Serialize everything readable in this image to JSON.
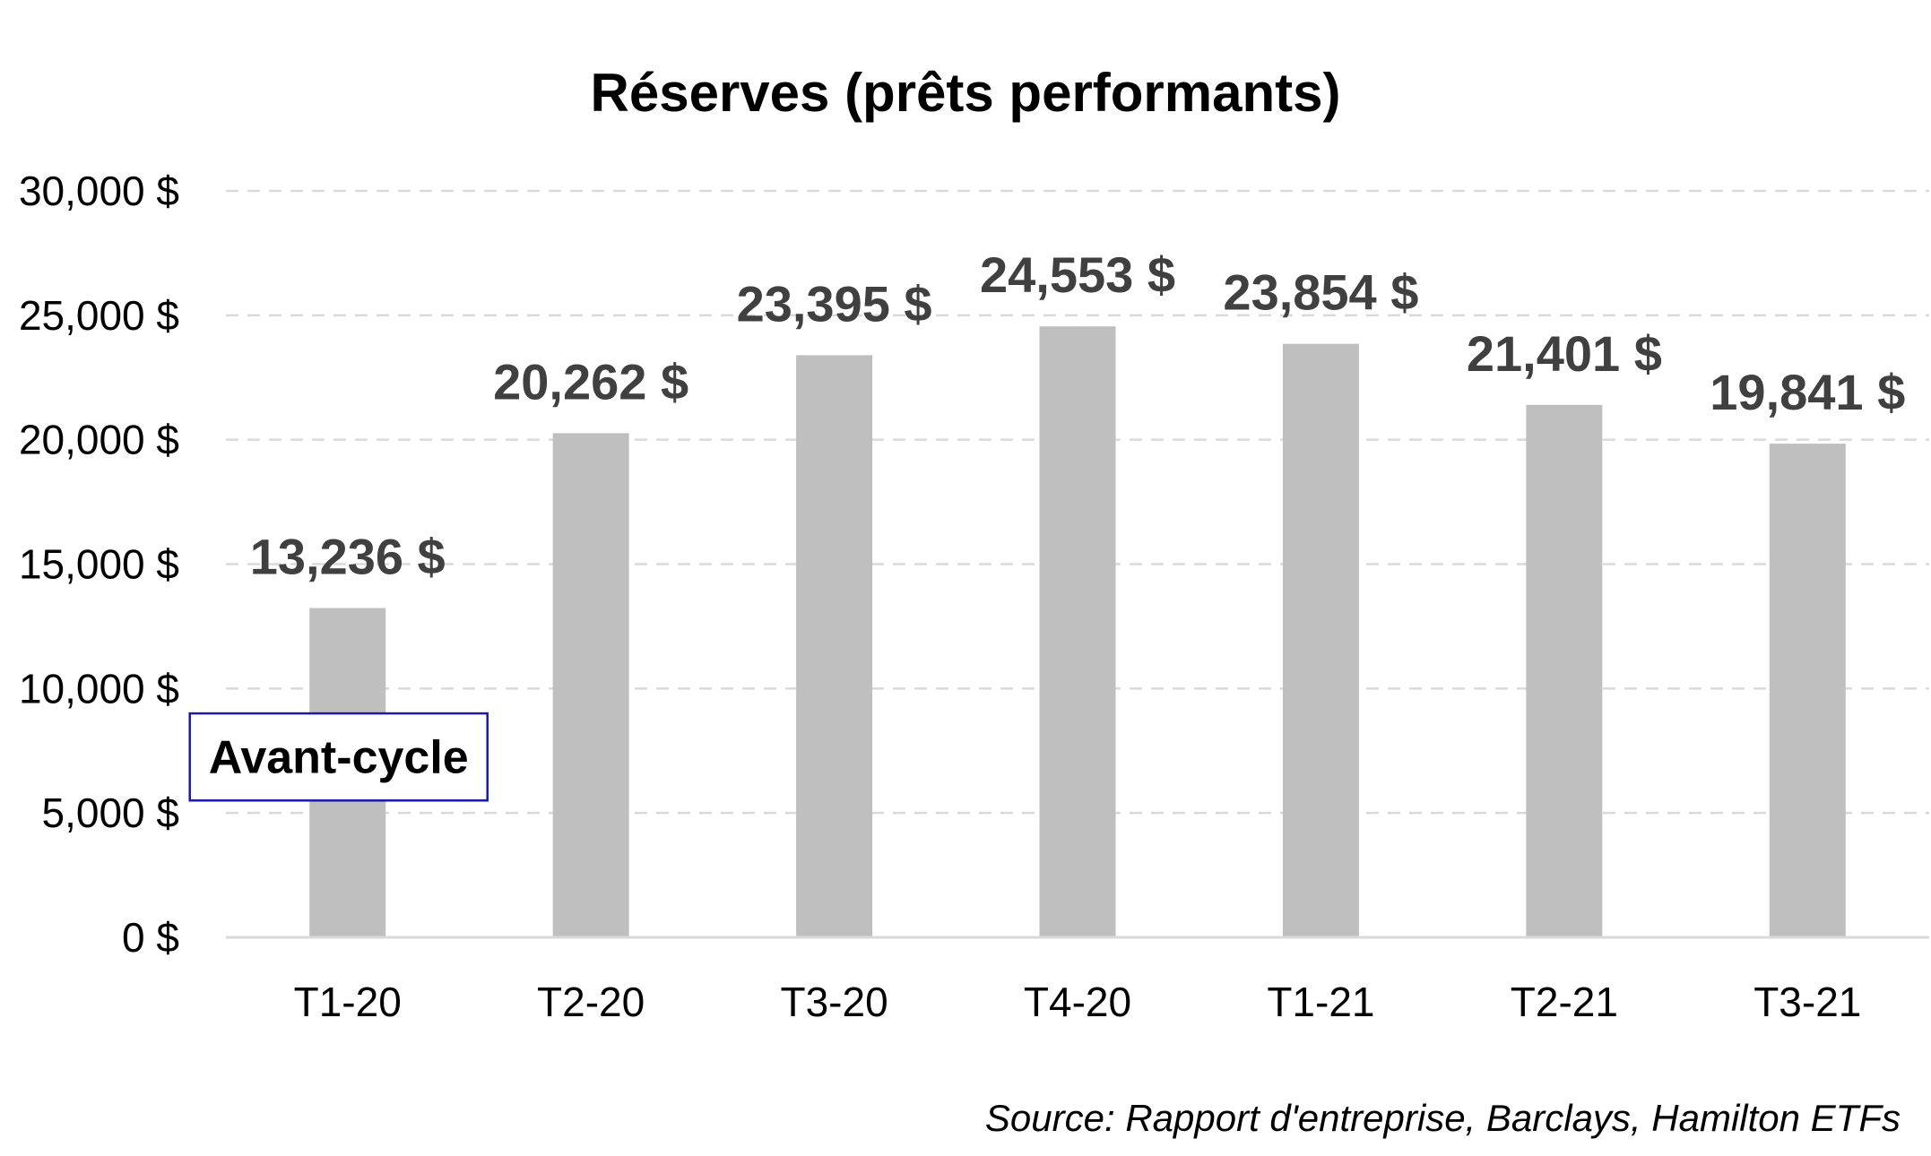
{
  "chart_data": {
    "type": "bar",
    "title": "Réserves (prêts performants)",
    "categories": [
      "T1-20",
      "T2-20",
      "T3-20",
      "T4-20",
      "T1-21",
      "T2-21",
      "T3-21"
    ],
    "values": [
      13236,
      20262,
      23395,
      24553,
      23854,
      21401,
      19841
    ],
    "data_labels": [
      "13,236 $",
      "20,262 $",
      "23,395 $",
      "24,553 $",
      "23,854 $",
      "21,401 $",
      "19,841 $"
    ],
    "ylim": [
      0,
      30000
    ],
    "yticks": [
      0,
      5000,
      10000,
      15000,
      20000,
      25000,
      30000
    ],
    "ytick_labels": [
      "0 $",
      "5,000 $",
      "10,000 $",
      "15,000 $",
      "20,000 $",
      "25,000 $",
      "30,000 $"
    ],
    "xlabel": "",
    "ylabel": "",
    "grid": "horizontal dashed",
    "legend": "none",
    "bar_color": "#bfbfbf",
    "gridline_color": "#d9d9d9",
    "axis_color": "#d9d9d9",
    "data_label_color": "#404040",
    "annotations": [
      {
        "text": "Avant-cycle",
        "category": "T1-20",
        "y_low": 5500,
        "y_high": 9000,
        "border_color": "#1a1aa6"
      }
    ],
    "source": "Source: Rapport d'entreprise, Barclays, Hamilton ETFs"
  }
}
